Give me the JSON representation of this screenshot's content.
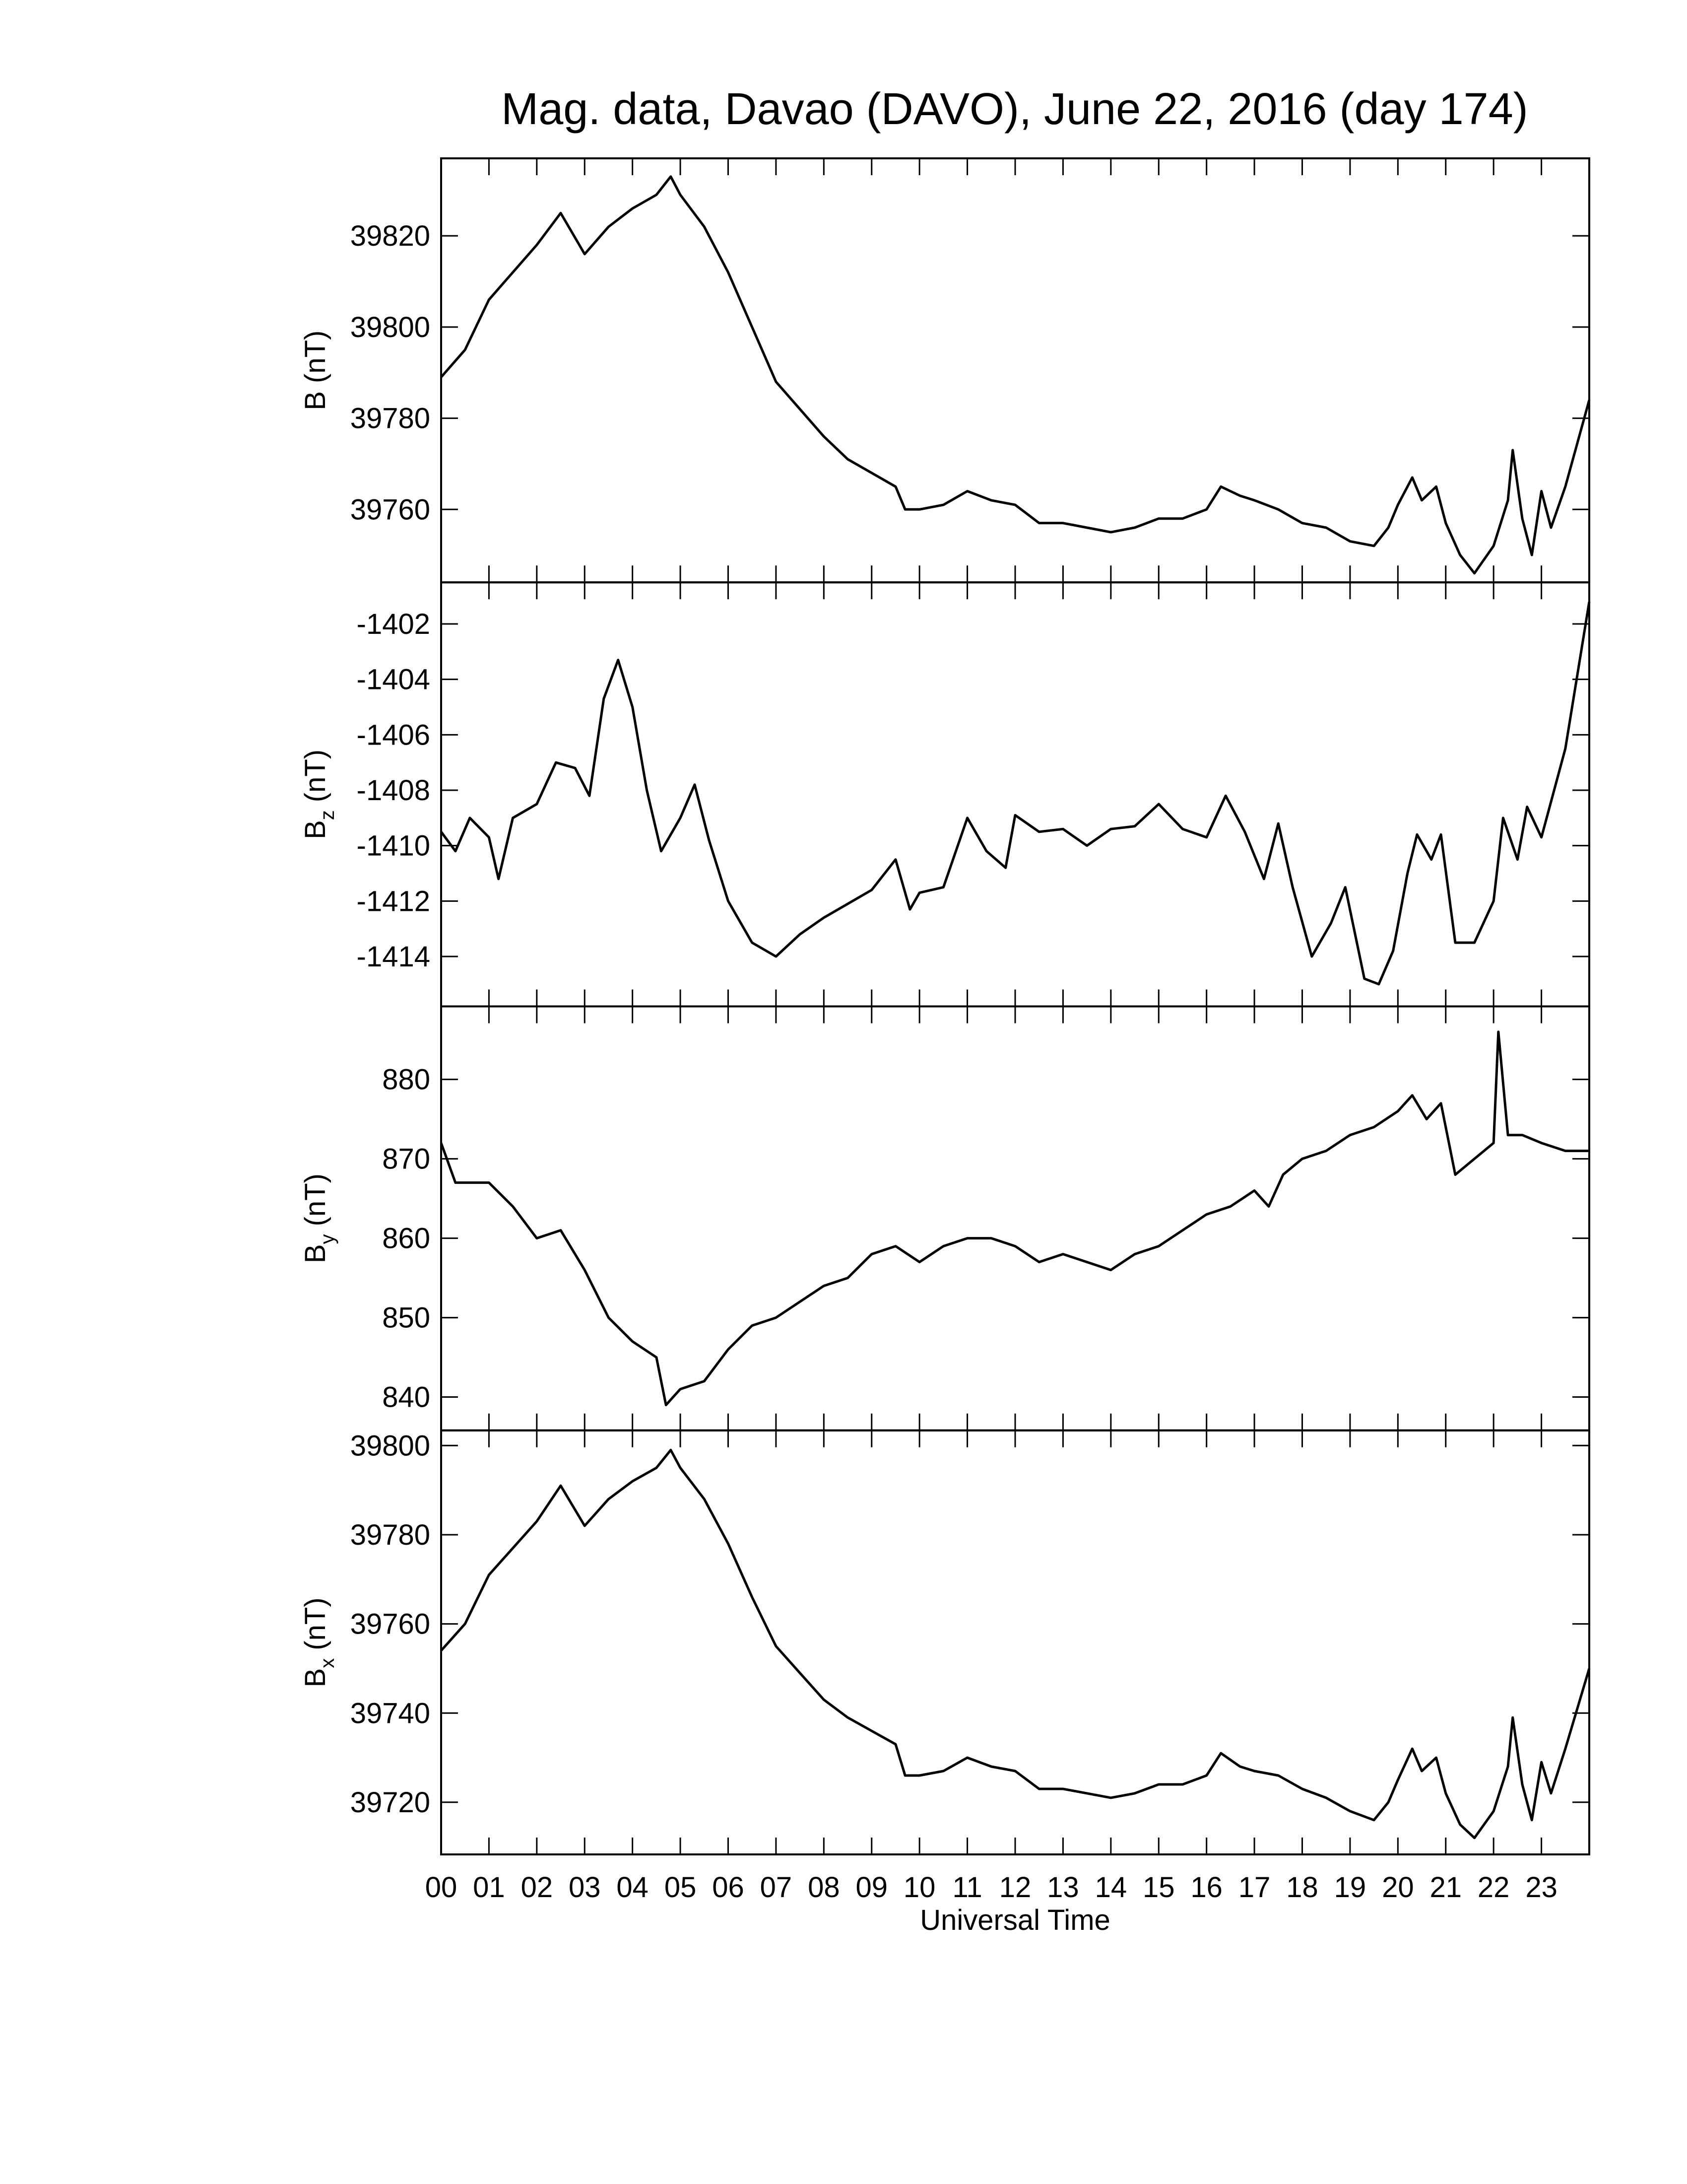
{
  "title": "Mag. data, Davao (DAVO), June 22, 2016 (day 174)",
  "chart_data": [
    {
      "type": "line",
      "ylabel": "B",
      "ylabel_unit": "(nT)",
      "color": "#000000",
      "xlim": [
        0,
        24
      ],
      "ylim": [
        39744,
        39837
      ],
      "yticks": [
        39760,
        39780,
        39800,
        39820
      ],
      "x": [
        0,
        0.5,
        1,
        1.5,
        2,
        2.5,
        3,
        3.5,
        4,
        4.5,
        4.8,
        5,
        5.5,
        6,
        6.5,
        7,
        7.5,
        8,
        8.5,
        9,
        9.5,
        9.7,
        10,
        10.5,
        11,
        11.5,
        12,
        12.5,
        13,
        13.5,
        14,
        14.5,
        15,
        15.5,
        16,
        16.3,
        16.7,
        17,
        17.5,
        18,
        18.5,
        19,
        19.5,
        19.8,
        20,
        20.3,
        20.5,
        20.8,
        21,
        21.3,
        21.6,
        22,
        22.3,
        22.4,
        22.6,
        22.8,
        23,
        23.2,
        23.5,
        24
      ],
      "values": [
        39789,
        39795,
        39806,
        39812,
        39818,
        39825,
        39816,
        39822,
        39826,
        39829,
        39833,
        39829,
        39822,
        39812,
        39800,
        39788,
        39782,
        39776,
        39771,
        39768,
        39765,
        39760,
        39760,
        39761,
        39764,
        39762,
        39761,
        39757,
        39757,
        39756,
        39755,
        39756,
        39758,
        39758,
        39760,
        39765,
        39763,
        39762,
        39760,
        39757,
        39756,
        39753,
        39752,
        39756,
        39761,
        39767,
        39762,
        39765,
        39757,
        39750,
        39746,
        39752,
        39762,
        39773,
        39758,
        39750,
        39764,
        39756,
        39765,
        39784
      ]
    },
    {
      "type": "line",
      "ylabel": "B",
      "ylabel_sub": "z",
      "ylabel_unit": "(nT)",
      "color": "#000000",
      "xlim": [
        0,
        24
      ],
      "ylim": [
        -1415.8,
        -1400.5
      ],
      "yticks": [
        -1414,
        -1412,
        -1410,
        -1408,
        -1406,
        -1404,
        -1402
      ],
      "x": [
        0,
        0.3,
        0.6,
        1,
        1.2,
        1.5,
        2,
        2.4,
        2.8,
        3.1,
        3.4,
        3.7,
        4,
        4.3,
        4.6,
        5,
        5.3,
        5.6,
        6,
        6.5,
        7,
        7.5,
        8,
        8.5,
        9,
        9.5,
        9.8,
        10,
        10.5,
        11,
        11.4,
        11.8,
        12,
        12.5,
        13,
        13.5,
        14,
        14.5,
        15,
        15.5,
        16,
        16.4,
        16.8,
        17.2,
        17.5,
        17.8,
        18.2,
        18.6,
        18.9,
        19.3,
        19.6,
        19.9,
        20.2,
        20.4,
        20.7,
        20.9,
        21.2,
        21.6,
        22,
        22.2,
        22.5,
        22.7,
        23,
        23.5,
        24
      ],
      "values": [
        -1409.5,
        -1410.2,
        -1409,
        -1409.7,
        -1411.2,
        -1409,
        -1408.5,
        -1407,
        -1407.2,
        -1408.2,
        -1404.7,
        -1403.3,
        -1405,
        -1408,
        -1410.2,
        -1409,
        -1407.8,
        -1409.8,
        -1412,
        -1413.5,
        -1414,
        -1413.2,
        -1412.6,
        -1412.1,
        -1411.6,
        -1410.5,
        -1412.3,
        -1411.7,
        -1411.5,
        -1409,
        -1410.2,
        -1410.8,
        -1408.9,
        -1409.5,
        -1409.4,
        -1410,
        -1409.4,
        -1409.3,
        -1408.5,
        -1409.4,
        -1409.7,
        -1408.2,
        -1409.5,
        -1411.2,
        -1409.2,
        -1411.5,
        -1414,
        -1412.8,
        -1411.5,
        -1414.8,
        -1415,
        -1413.8,
        -1411,
        -1409.6,
        -1410.5,
        -1409.6,
        -1413.5,
        -1413.5,
        -1412,
        -1409,
        -1410.5,
        -1408.6,
        -1409.7,
        -1406.5,
        -1401.2
      ]
    },
    {
      "type": "line",
      "ylabel": "B",
      "ylabel_sub": "y",
      "ylabel_unit": "(nT)",
      "color": "#000000",
      "xlim": [
        0,
        24
      ],
      "ylim": [
        835.8,
        889.2
      ],
      "yticks": [
        840,
        850,
        860,
        870,
        880
      ],
      "x": [
        0,
        0.3,
        1,
        1.5,
        2,
        2.5,
        3,
        3.5,
        4,
        4.5,
        4.7,
        5,
        5.5,
        6,
        6.5,
        7,
        7.5,
        8,
        8.5,
        9,
        9.5,
        10,
        10.5,
        11,
        11.5,
        12,
        12.5,
        13,
        13.5,
        14,
        14.5,
        15,
        15.5,
        16,
        16.5,
        17,
        17.3,
        17.6,
        18,
        18.5,
        19,
        19.5,
        20,
        20.3,
        20.6,
        20.9,
        21.2,
        21.6,
        22,
        22.1,
        22.3,
        22.6,
        23,
        23.5,
        24
      ],
      "values": [
        872,
        867,
        867,
        864,
        860,
        861,
        856,
        850,
        847,
        845,
        839,
        841,
        842,
        846,
        849,
        850,
        852,
        854,
        855,
        858,
        859,
        857,
        859,
        860,
        860,
        859,
        857,
        858,
        857,
        856,
        858,
        859,
        861,
        863,
        864,
        866,
        864,
        868,
        870,
        871,
        873,
        874,
        876,
        878,
        875,
        877,
        868,
        870,
        872,
        886,
        873,
        873,
        872,
        871,
        871
      ]
    },
    {
      "type": "line",
      "ylabel": "B",
      "ylabel_sub": "x",
      "ylabel_unit": "(nT)",
      "color": "#000000",
      "xlabel": "Universal Time",
      "xlim": [
        0,
        24
      ],
      "ylim": [
        39708.3,
        39803.4
      ],
      "yticks": [
        39720,
        39740,
        39760,
        39780,
        39800
      ],
      "xticks": [
        {
          "value": 0,
          "label": "00"
        },
        {
          "value": 1,
          "label": "01"
        },
        {
          "value": 2,
          "label": "02"
        },
        {
          "value": 3,
          "label": "03"
        },
        {
          "value": 4,
          "label": "04"
        },
        {
          "value": 5,
          "label": "05"
        },
        {
          "value": 6,
          "label": "06"
        },
        {
          "value": 7,
          "label": "07"
        },
        {
          "value": 8,
          "label": "08"
        },
        {
          "value": 9,
          "label": "09"
        },
        {
          "value": 10,
          "label": "10"
        },
        {
          "value": 11,
          "label": "11"
        },
        {
          "value": 12,
          "label": "12"
        },
        {
          "value": 13,
          "label": "13"
        },
        {
          "value": 14,
          "label": "14"
        },
        {
          "value": 15,
          "label": "15"
        },
        {
          "value": 16,
          "label": "16"
        },
        {
          "value": 17,
          "label": "17"
        },
        {
          "value": 18,
          "label": "18"
        },
        {
          "value": 19,
          "label": "19"
        },
        {
          "value": 20,
          "label": "20"
        },
        {
          "value": 21,
          "label": "21"
        },
        {
          "value": 22,
          "label": "22"
        },
        {
          "value": 23,
          "label": "23"
        }
      ],
      "x": [
        0,
        0.5,
        1,
        1.5,
        2,
        2.5,
        3,
        3.5,
        4,
        4.5,
        4.8,
        5,
        5.5,
        6,
        6.5,
        7,
        7.5,
        8,
        8.5,
        9,
        9.5,
        9.7,
        10,
        10.5,
        11,
        11.5,
        12,
        12.5,
        13,
        13.5,
        14,
        14.5,
        15,
        15.5,
        16,
        16.3,
        16.7,
        17,
        17.5,
        18,
        18.5,
        19,
        19.5,
        19.8,
        20,
        20.3,
        20.5,
        20.8,
        21,
        21.3,
        21.6,
        22,
        22.3,
        22.4,
        22.6,
        22.8,
        23,
        23.2,
        23.5,
        24
      ],
      "values": [
        39754,
        39760,
        39771,
        39777,
        39783,
        39791,
        39782,
        39788,
        39792,
        39795,
        39799,
        39795,
        39788,
        39778,
        39766,
        39755,
        39749,
        39743,
        39739,
        39736,
        39733,
        39726,
        39726,
        39727,
        39730,
        39728,
        39727,
        39723,
        39723,
        39722,
        39721,
        39722,
        39724,
        39724,
        39726,
        39731,
        39728,
        39727,
        39726,
        39723,
        39721,
        39718,
        39716,
        39720,
        39725,
        39732,
        39727,
        39730,
        39722,
        39715,
        39712,
        39718,
        39728,
        39739,
        39724,
        39716,
        39729,
        39722,
        39732,
        39750
      ]
    }
  ]
}
